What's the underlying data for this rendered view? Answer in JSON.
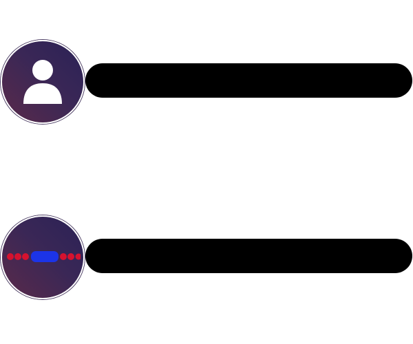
{
  "form": {
    "username": {
      "icon": "user-icon",
      "value": "",
      "placeholder": ""
    },
    "password": {
      "icon": "password-dots-icon",
      "value": "",
      "placeholder": ""
    }
  },
  "colors": {
    "page_background": "#ffffff",
    "input_background": "#000000",
    "badge_gradient_start": "#2b2256",
    "badge_gradient_end": "#5a2a4a",
    "dot_red": "#d6122f",
    "cursor_blue": "#1c34e8"
  }
}
